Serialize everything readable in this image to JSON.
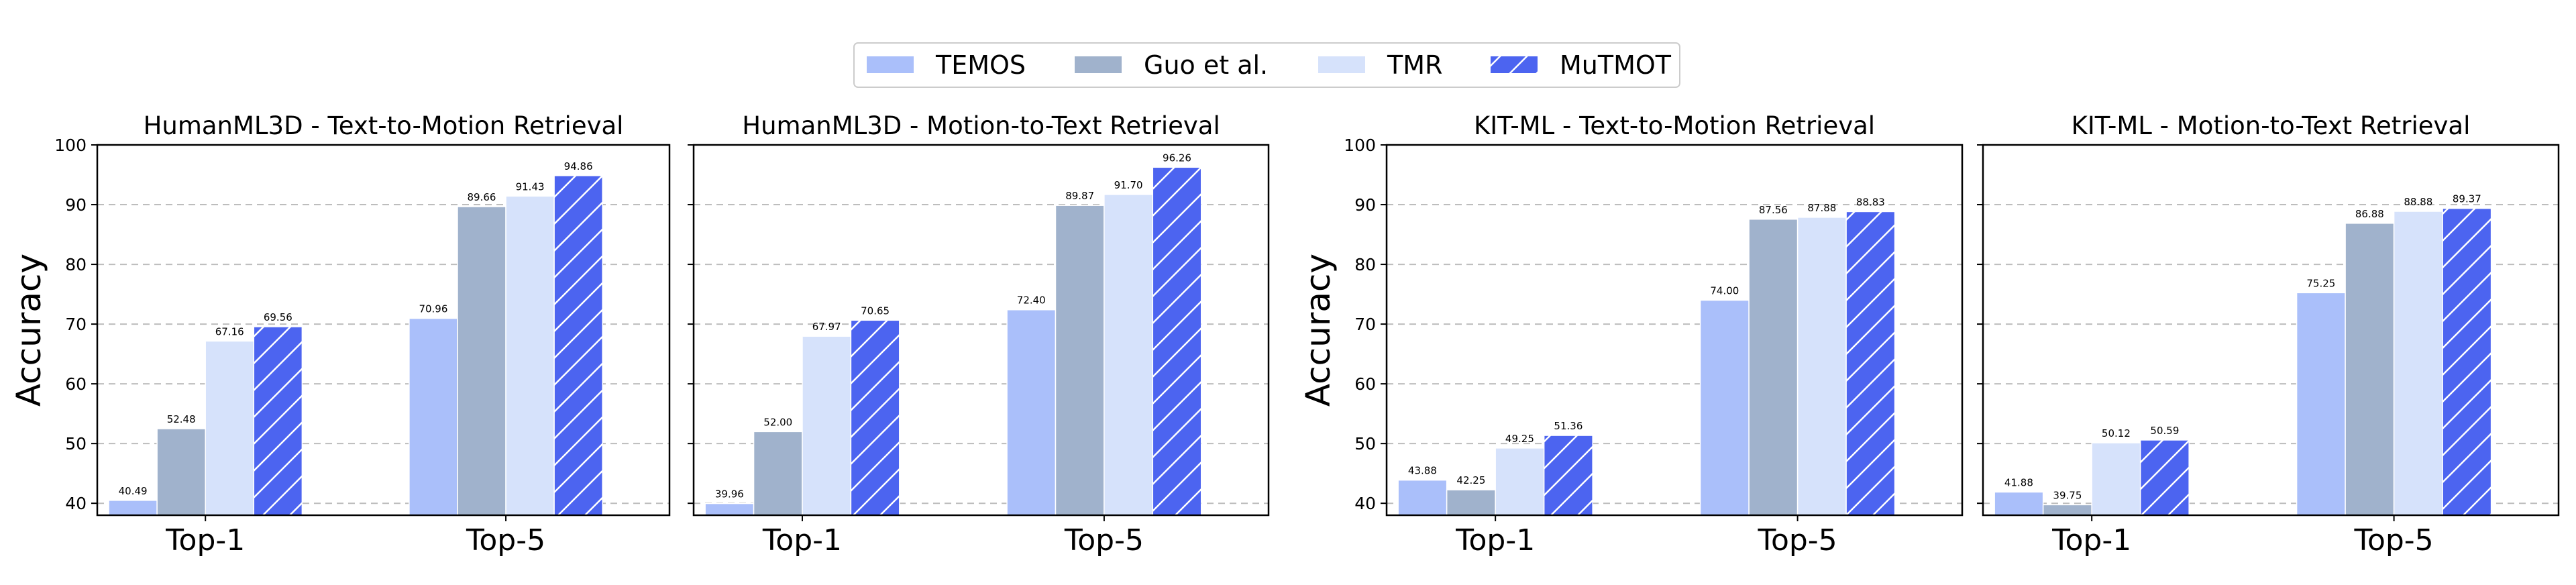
{
  "colors": {
    "TEMOS": "#aabffa",
    "Guo et al.": "#a0b2cc",
    "TMR": "#d6e2fb",
    "MuTMOT": "#4c64f0",
    "hatch": "#ffffff"
  },
  "legend": [
    "TEMOS",
    "Guo et al.",
    "TMR",
    "MuTMOT"
  ],
  "chart_data": [
    {
      "type": "bar",
      "title": "HumanML3D - Text-to-Motion Retrieval",
      "ylabel": "Accuracy",
      "ylim": [
        38,
        100
      ],
      "yticks": [
        40,
        50,
        60,
        70,
        80,
        90,
        100
      ],
      "categories": [
        "Top-1",
        "Top-5"
      ],
      "grid": true,
      "series": [
        {
          "name": "TEMOS",
          "values": [
            40.49,
            70.96
          ],
          "labels": [
            "40.49",
            "70.96"
          ]
        },
        {
          "name": "Guo et al.",
          "values": [
            52.48,
            89.66
          ],
          "labels": [
            "52.48",
            "89.66"
          ]
        },
        {
          "name": "TMR",
          "values": [
            67.16,
            91.43
          ],
          "labels": [
            "67.16",
            "91.43"
          ]
        },
        {
          "name": "MuTMOT",
          "values": [
            69.56,
            94.86
          ],
          "labels": [
            "69.56",
            "94.86"
          ]
        }
      ]
    },
    {
      "type": "bar",
      "title": "HumanML3D - Motion-to-Text Retrieval",
      "ylabel": "",
      "ylim": [
        38,
        100
      ],
      "yticks": [
        40,
        50,
        60,
        70,
        80,
        90,
        100
      ],
      "categories": [
        "Top-1",
        "Top-5"
      ],
      "grid": true,
      "series": [
        {
          "name": "TEMOS",
          "values": [
            39.96,
            72.4
          ],
          "labels": [
            "39.96",
            "72.40"
          ]
        },
        {
          "name": "Guo et al.",
          "values": [
            52.0,
            89.87
          ],
          "labels": [
            "52.00",
            "89.87"
          ]
        },
        {
          "name": "TMR",
          "values": [
            67.97,
            91.7
          ],
          "labels": [
            "67.97",
            "91.70"
          ]
        },
        {
          "name": "MuTMOT",
          "values": [
            70.65,
            96.26
          ],
          "labels": [
            "70.65",
            "96.26"
          ]
        }
      ]
    },
    {
      "type": "bar",
      "title": "KIT-ML - Text-to-Motion Retrieval",
      "ylabel": "Accuracy",
      "ylim": [
        38,
        100
      ],
      "yticks": [
        40,
        50,
        60,
        70,
        80,
        90,
        100
      ],
      "categories": [
        "Top-1",
        "Top-5"
      ],
      "grid": true,
      "series": [
        {
          "name": "TEMOS",
          "values": [
            43.88,
            74.0
          ],
          "labels": [
            "43.88",
            "74.00"
          ]
        },
        {
          "name": "Guo et al.",
          "values": [
            42.25,
            87.56
          ],
          "labels": [
            "42.25",
            "87.56"
          ]
        },
        {
          "name": "TMR",
          "values": [
            49.25,
            87.88
          ],
          "labels": [
            "49.25",
            "87.88"
          ]
        },
        {
          "name": "MuTMOT",
          "values": [
            51.36,
            88.83
          ],
          "labels": [
            "51.36",
            "88.83"
          ]
        }
      ]
    },
    {
      "type": "bar",
      "title": "KIT-ML - Motion-to-Text Retrieval",
      "ylabel": "",
      "ylim": [
        38,
        100
      ],
      "yticks": [
        40,
        50,
        60,
        70,
        80,
        90,
        100
      ],
      "categories": [
        "Top-1",
        "Top-5"
      ],
      "grid": true,
      "series": [
        {
          "name": "TEMOS",
          "values": [
            41.88,
            75.25
          ],
          "labels": [
            "41.88",
            "75.25"
          ]
        },
        {
          "name": "Guo et al.",
          "values": [
            39.75,
            86.88
          ],
          "labels": [
            "39.75",
            "86.88"
          ]
        },
        {
          "name": "TMR",
          "values": [
            50.12,
            88.88
          ],
          "labels": [
            "50.12",
            "88.88"
          ]
        },
        {
          "name": "MuTMOT",
          "values": [
            50.59,
            89.37
          ],
          "labels": [
            "50.59",
            "89.37"
          ]
        }
      ]
    }
  ]
}
